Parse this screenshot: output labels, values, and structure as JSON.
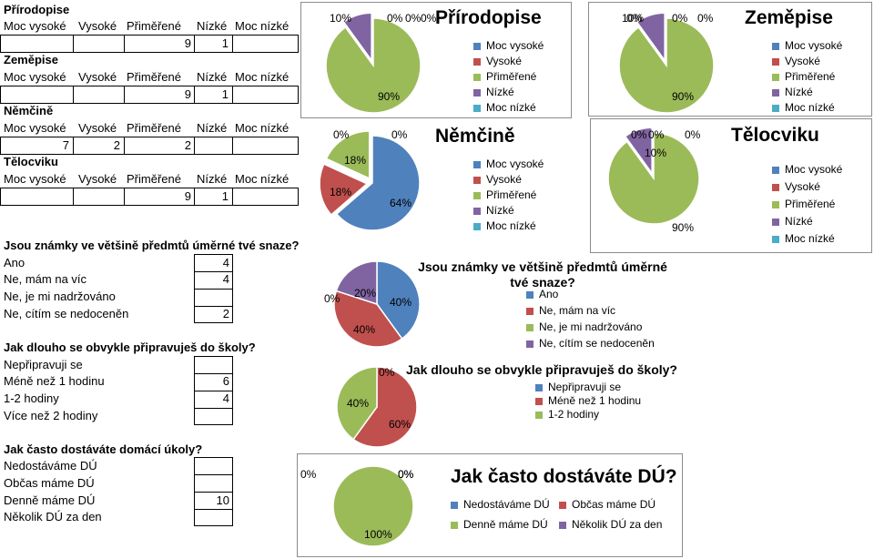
{
  "colors": {
    "moc_vysoke": "#4f81bd",
    "vysoke": "#c0504d",
    "primerene": "#9bbb59",
    "nizke": "#8064a2",
    "moc_nizke": "#4bacc6"
  },
  "sheet": {
    "rating_headers": [
      "Moc vysoké",
      "Vysoké",
      "Přiměřené",
      "Nízké",
      "Moc nízké"
    ],
    "subjects": [
      {
        "name": "Přírodopise",
        "values": [
          "",
          "",
          "9",
          "1",
          ""
        ]
      },
      {
        "name": "Zeměpise",
        "values": [
          "",
          "",
          "9",
          "1",
          ""
        ]
      },
      {
        "name": "Němčině",
        "values": [
          "7",
          "2",
          "2",
          "",
          ""
        ]
      },
      {
        "name": "Tělocviku",
        "values": [
          "",
          "",
          "9",
          "1",
          ""
        ]
      }
    ],
    "q1": {
      "question": "Jsou známky ve většině předmtů úměrné tvé snaze?",
      "options": [
        {
          "label": "Ano",
          "value": "4"
        },
        {
          "label": "Ne, mám na víc",
          "value": "4"
        },
        {
          "label": "Ne, je mi nadržováno",
          "value": ""
        },
        {
          "label": "Ne, cítím se nedoceněn",
          "value": "2"
        }
      ]
    },
    "q2": {
      "question": "Jak dlouho se obvykle připravuješ do školy?",
      "options": [
        {
          "label": "Nepřipravuji se",
          "value": ""
        },
        {
          "label": "Méně než 1 hodinu",
          "value": "6"
        },
        {
          "label": "1-2 hodiny",
          "value": "4"
        },
        {
          "label": "Více než 2 hodiny",
          "value": ""
        }
      ]
    },
    "q3": {
      "question": "Jak často dostáváte domácí úkoly?",
      "options": [
        {
          "label": "Nedostáváme DÚ",
          "value": ""
        },
        {
          "label": "Občas máme DÚ",
          "value": ""
        },
        {
          "label": "Denně máme DÚ",
          "value": "10"
        },
        {
          "label": "Několik DÚ za den",
          "value": ""
        }
      ]
    }
  },
  "chart_data": [
    {
      "type": "pie",
      "title": "Přírodopise",
      "categories": [
        "Moc vysoké",
        "Vysoké",
        "Přiměřené",
        "Nízké",
        "Moc nízké"
      ],
      "values": [
        0,
        0,
        9,
        1,
        0
      ],
      "labels": [
        "0%",
        "0%",
        "90%",
        "10%",
        "0%"
      ]
    },
    {
      "type": "pie",
      "title": "Němčině",
      "categories": [
        "Moc vysoké",
        "Vysoké",
        "Přiměřené",
        "Nízké",
        "Moc nízké"
      ],
      "values": [
        7,
        2,
        2,
        0,
        0
      ],
      "labels": [
        "64%",
        "18%",
        "18%",
        "0%",
        "0%"
      ]
    },
    {
      "type": "pie",
      "title": "Zeměpise",
      "categories": [
        "Moc vysoké",
        "Vysoké",
        "Přiměřené",
        "Nízké",
        "Moc nízké"
      ],
      "values": [
        0,
        0,
        9,
        1,
        0
      ],
      "labels": [
        "0%",
        "0%",
        "90%",
        "10%",
        "0%"
      ]
    },
    {
      "type": "pie",
      "title": "Tělocviku",
      "categories": [
        "Moc vysoké",
        "Vysoké",
        "Přiměřené",
        "Nízké",
        "Moc nízké"
      ],
      "values": [
        0,
        0,
        9,
        1,
        0
      ],
      "labels": [
        "0%",
        "0%",
        "90%",
        "10%",
        "0%"
      ]
    },
    {
      "type": "pie",
      "title": "Jsou známky ve většině předmtů úměrné tvé snaze?",
      "categories": [
        "Ano",
        "Ne, mám na víc",
        "Ne, je mi nadržováno",
        "Ne, cítím se nedoceněn"
      ],
      "values": [
        4,
        4,
        0,
        2
      ],
      "labels": [
        "40%",
        "40%",
        "0%",
        "20%"
      ]
    },
    {
      "type": "pie",
      "title": "Jak dlouho se obvykle připravuješ do školy?",
      "categories": [
        "Nepřipravuji se",
        "Méně než 1 hodinu",
        "1-2 hodiny"
      ],
      "values": [
        0,
        6,
        4
      ],
      "labels": [
        "0%",
        "60%",
        "40%"
      ]
    },
    {
      "type": "pie",
      "title": "Jak často dostáváte DÚ?",
      "categories": [
        "Nedostáváme DÚ",
        "Občas máme DÚ",
        "Denně máme DÚ",
        "Několik DÚ za den"
      ],
      "values": [
        0,
        0,
        10,
        0
      ],
      "labels": [
        "0%",
        "0%",
        "100%",
        "0%"
      ]
    }
  ]
}
